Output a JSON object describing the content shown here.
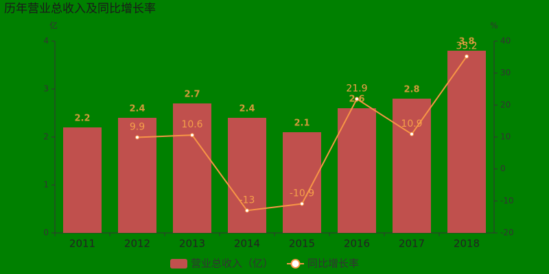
{
  "chart_data": {
    "type": "bar",
    "title": "历年营业总收入及同比增长率",
    "y_unit": "亿",
    "y2_unit": "%",
    "categories": [
      "2011",
      "2012",
      "2013",
      "2014",
      "2015",
      "2016",
      "2017",
      "2018"
    ],
    "series": [
      {
        "name": "营业总收入（亿）",
        "type": "bar",
        "color": "#c0504d",
        "label_color": "#d09a3a",
        "values": [
          2.2,
          2.4,
          2.7,
          2.4,
          2.1,
          2.6,
          2.8,
          3.8
        ]
      },
      {
        "name": "同比增长率",
        "type": "line",
        "axis": "y2",
        "color": "#f79646",
        "label_color": "#f5a04a",
        "values": [
          null,
          9.9,
          10.6,
          -13,
          -10.9,
          21.9,
          10.9,
          35.2
        ]
      }
    ],
    "ylim": [
      0,
      4
    ],
    "yticks": [
      0,
      1,
      2,
      3,
      4
    ],
    "y2lim": [
      -20,
      40
    ],
    "y2ticks": [
      -20,
      -10,
      0,
      10,
      20,
      30,
      40
    ],
    "legend": "bottom"
  }
}
